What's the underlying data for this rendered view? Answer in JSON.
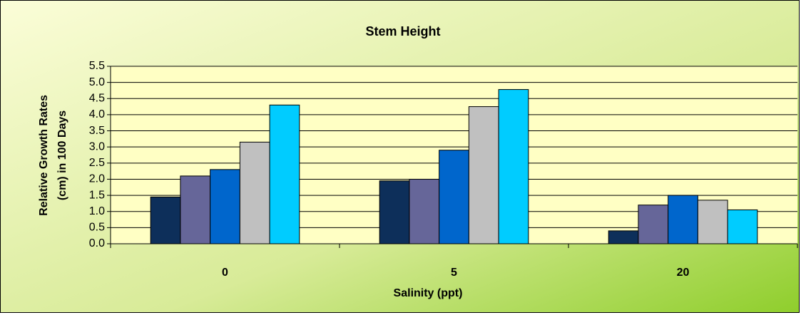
{
  "chart_data": {
    "type": "bar",
    "title": "Stem Height",
    "xlabel": "Salinity (ppt)",
    "ylabel": [
      "Relative Growth Rates",
      "(cm) in 100 Days"
    ],
    "categories": [
      "0",
      "5",
      "20"
    ],
    "series": [
      {
        "color": "#0d2f5a",
        "values": [
          1.45,
          1.95,
          0.4
        ]
      },
      {
        "color": "#666699",
        "values": [
          2.1,
          2.0,
          1.2
        ]
      },
      {
        "color": "#0066cc",
        "values": [
          2.3,
          2.9,
          1.5
        ]
      },
      {
        "color": "#c0c0c0",
        "values": [
          3.15,
          4.25,
          1.35
        ]
      },
      {
        "color": "#00ccff",
        "values": [
          4.3,
          4.78,
          1.05
        ]
      }
    ],
    "ylim": [
      0,
      5.5
    ],
    "yticks": [
      {
        "value": 0,
        "label": "0.0"
      },
      {
        "value": 0.5,
        "label": "0.5"
      },
      {
        "value": 1,
        "label": "1.0"
      },
      {
        "value": 1.5,
        "label": "1.5"
      },
      {
        "value": 2,
        "label": "2.0"
      },
      {
        "value": 2.5,
        "label": "2.5"
      },
      {
        "value": 3,
        "label": "3.0"
      },
      {
        "value": 3.5,
        "label": "3.5"
      },
      {
        "value": 4,
        "label": "4.0"
      },
      {
        "value": 4.5,
        "label": "4.5"
      },
      {
        "value": 5,
        "label": "5.0"
      },
      {
        "value": 5.5,
        "label": "5.5"
      }
    ],
    "grid": true
  }
}
